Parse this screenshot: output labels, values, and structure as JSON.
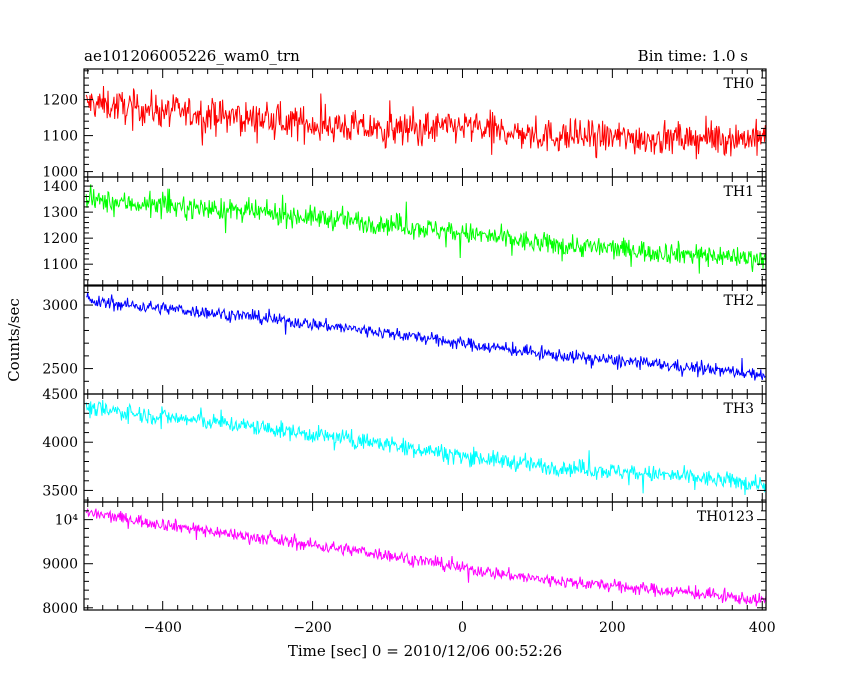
{
  "header": {
    "title": "ae101206005226_wam0_trn",
    "bin_time": "Bin time: 1.0 s"
  },
  "axes": {
    "xlabel": "Time [sec] 0 = 2010/12/06 00:52:26",
    "ylabel": "Counts/sec"
  },
  "chart_data": {
    "type": "line",
    "title": "ae101206005226_wam0_trn",
    "xlabel": "Time [sec] 0 = 2010/12/06 00:52:26",
    "ylabel": "Counts/sec",
    "xlim": [
      -505,
      405
    ],
    "x_ticks": [
      -400,
      -200,
      0,
      200,
      400
    ],
    "x_tick_labels": [
      "−400",
      "−200",
      "0",
      "200",
      "400"
    ],
    "x_range_data": [
      -502,
      412
    ],
    "grid": false,
    "series": [
      {
        "name": "TH0",
        "color": "#ff0000",
        "ylim": [
          985,
          1285
        ],
        "y_ticks": [
          1000,
          1100,
          1200
        ],
        "y_tick_labels": [
          "1000",
          "1100",
          "1200"
        ],
        "start": 1190,
        "end": 1085,
        "noise": 42,
        "trend": [
          [
            -500,
            1190
          ],
          [
            -300,
            1150
          ],
          [
            -100,
            1115
          ],
          [
            0,
            1125
          ],
          [
            100,
            1100
          ],
          [
            300,
            1090
          ],
          [
            410,
            1095
          ]
        ]
      },
      {
        "name": "TH1",
        "color": "#00ff00",
        "ylim": [
          1020,
          1435
        ],
        "y_ticks": [
          1100,
          1200,
          1300,
          1400
        ],
        "y_tick_labels": [
          "1100",
          "1200",
          "1300",
          "1400"
        ],
        "start": 1345,
        "end": 1120,
        "noise": 38,
        "trend": [
          [
            -500,
            1345
          ],
          [
            -300,
            1305
          ],
          [
            -100,
            1255
          ],
          [
            0,
            1220
          ],
          [
            100,
            1180
          ],
          [
            300,
            1140
          ],
          [
            410,
            1120
          ]
        ]
      },
      {
        "name": "TH2",
        "color": "#0000ff",
        "ylim": [
          2300,
          3150
        ],
        "y_ticks": [
          2500,
          3000
        ],
        "y_tick_labels": [
          "2500",
          "3000"
        ],
        "start": 3030,
        "end": 2450,
        "noise": 45,
        "trend": [
          [
            -500,
            3030
          ],
          [
            -300,
            2920
          ],
          [
            -100,
            2780
          ],
          [
            0,
            2700
          ],
          [
            100,
            2620
          ],
          [
            300,
            2510
          ],
          [
            410,
            2450
          ]
        ]
      },
      {
        "name": "TH3",
        "color": "#00ffff",
        "ylim": [
          3380,
          4500
        ],
        "y_ticks": [
          3500,
          4000,
          4500
        ],
        "y_tick_labels": [
          "3500",
          "4000",
          "4500"
        ],
        "start": 4350,
        "end": 3550,
        "noise": 80,
        "trend": [
          [
            -500,
            4350
          ],
          [
            -300,
            4180
          ],
          [
            -100,
            3980
          ],
          [
            0,
            3860
          ],
          [
            100,
            3760
          ],
          [
            300,
            3640
          ],
          [
            410,
            3560
          ]
        ]
      },
      {
        "name": "TH0123",
        "color": "#ff00ff",
        "ylim": [
          7950,
          10400
        ],
        "y_ticks": [
          8000,
          9000,
          10000
        ],
        "y_tick_labels": [
          "8000",
          "9000",
          "10⁴"
        ],
        "start": 10150,
        "end": 8150,
        "noise": 130,
        "trend": [
          [
            -500,
            10150
          ],
          [
            -300,
            9650
          ],
          [
            -100,
            9200
          ],
          [
            0,
            8900
          ],
          [
            100,
            8650
          ],
          [
            300,
            8350
          ],
          [
            410,
            8150
          ]
        ]
      }
    ]
  }
}
